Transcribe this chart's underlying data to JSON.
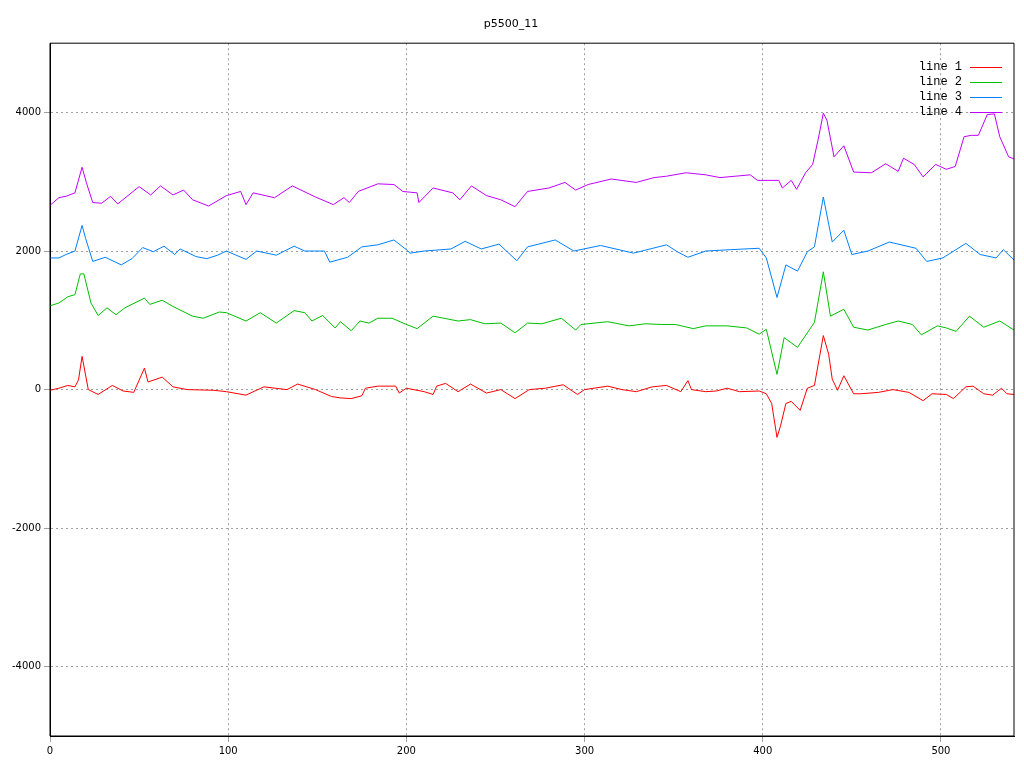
{
  "chart_data": {
    "type": "line",
    "title": "p5500_11",
    "xlim": [
      0,
      541
    ],
    "xticks": [
      0,
      100,
      200,
      300,
      400,
      500
    ],
    "ylim": [
      -5000,
      5000
    ],
    "yticks": [
      -4000,
      -2000,
      0,
      2000,
      4000
    ],
    "grid": true,
    "legend": "top right",
    "marker": "none",
    "line_style": "solid",
    "series": [
      {
        "name": "line 1",
        "color": "#ff0000",
        "x": [
          0,
          5,
          10,
          14,
          16,
          18,
          21.5,
          27,
          35,
          41,
          47,
          53,
          55,
          63,
          69,
          77,
          92,
          99,
          110,
          120,
          133,
          139,
          149,
          158,
          163,
          169,
          175,
          177,
          184,
          194,
          196,
          200,
          210,
          215,
          217,
          222,
          229,
          236,
          245,
          253,
          261,
          269,
          278,
          288,
          296,
          300,
          313,
          321,
          329,
          338,
          346,
          354,
          358,
          360,
          368,
          374,
          380,
          387,
          398,
          402,
          405,
          408,
          410,
          413,
          416,
          421,
          425,
          429,
          434,
          437,
          439,
          442,
          445.5,
          451,
          455,
          465,
          473,
          482,
          490,
          495,
          503,
          507,
          514,
          518,
          524,
          529,
          534,
          537,
          541
        ],
        "values": [
          -10,
          20,
          60,
          40,
          140,
          480,
          0,
          -70,
          60,
          -20,
          -40,
          310,
          110,
          180,
          40,
          0,
          -10,
          -30,
          -80,
          40,
          0,
          80,
          0,
          -100,
          -120,
          -130,
          -90,
          20,
          50,
          50,
          -50,
          20,
          -30,
          -70,
          50,
          90,
          -30,
          80,
          -50,
          0,
          -130,
          0,
          20,
          70,
          -70,
          0,
          50,
          0,
          -30,
          40,
          60,
          -30,
          130,
          0,
          -30,
          -20,
          20,
          -30,
          -20,
          -60,
          -200,
          -690,
          -520,
          -200,
          -170,
          -300,
          20,
          60,
          780,
          510,
          150,
          -10,
          200,
          -60,
          -60,
          -40,
          0,
          -40,
          -160,
          -60,
          -70,
          -130,
          40,
          50,
          -60,
          -80,
          20,
          -60,
          -70
        ]
      },
      {
        "name": "line 2",
        "color": "#00c000",
        "x": [
          0,
          5,
          10,
          14,
          17,
          19,
          23,
          27,
          32,
          37,
          42,
          53,
          56,
          63,
          69,
          80,
          86,
          95,
          99,
          110,
          118,
          127,
          137,
          143,
          147,
          153,
          160,
          163,
          169,
          174,
          179,
          184,
          192,
          200,
          206,
          215,
          229,
          236,
          244,
          253,
          261,
          268,
          276,
          287,
          295,
          298,
          313,
          325,
          334,
          343,
          351,
          361,
          368,
          380,
          391,
          398,
          402,
          408,
          412,
          419.5,
          429,
          434,
          438,
          445.5,
          451,
          459,
          469,
          476,
          484,
          489,
          498,
          503,
          508.5,
          516,
          524,
          533,
          541
        ],
        "values": [
          1210,
          1250,
          1340,
          1370,
          1670,
          1670,
          1250,
          1070,
          1180,
          1080,
          1180,
          1320,
          1230,
          1290,
          1200,
          1060,
          1030,
          1120,
          1110,
          990,
          1110,
          960,
          1140,
          1110,
          990,
          1070,
          890,
          980,
          850,
          990,
          960,
          1030,
          1030,
          940,
          880,
          1060,
          990,
          1010,
          950,
          960,
          820,
          960,
          950,
          1030,
          860,
          940,
          980,
          920,
          950,
          940,
          940,
          880,
          920,
          920,
          890,
          800,
          870,
          220,
          750,
          610,
          970,
          1700,
          1060,
          1160,
          900,
          860,
          940,
          990,
          940,
          790,
          920,
          890,
          840,
          1060,
          900,
          990,
          860
        ]
      },
      {
        "name": "line 3",
        "color": "#0080ff",
        "x": [
          0,
          5,
          9,
          14,
          18,
          20,
          24,
          31,
          40,
          46,
          52,
          58,
          64,
          70,
          73,
          82,
          88,
          94,
          99,
          110,
          116,
          127,
          137,
          143,
          154,
          157,
          167,
          175,
          184,
          193,
          200,
          202,
          210,
          225,
          233,
          242,
          252,
          262,
          268,
          283.5,
          294,
          309,
          327.5,
          346,
          352,
          358,
          368,
          382,
          398,
          402,
          408,
          413,
          419.5,
          425,
          429,
          434,
          439,
          445.5,
          450,
          459,
          471,
          486,
          492,
          501,
          514,
          522,
          531,
          535,
          541
        ],
        "values": [
          1900,
          1900,
          1950,
          2000,
          2370,
          2180,
          1850,
          1910,
          1800,
          1890,
          2050,
          1990,
          2070,
          1950,
          2030,
          1920,
          1890,
          1940,
          2000,
          1880,
          2000,
          1940,
          2070,
          2000,
          2000,
          1840,
          1910,
          2060,
          2090,
          2160,
          2020,
          1970,
          2000,
          2030,
          2140,
          2030,
          2100,
          1860,
          2060,
          2160,
          2000,
          2080,
          1970,
          2090,
          1990,
          1910,
          2000,
          2020,
          2040,
          1900,
          1330,
          1800,
          1710,
          1990,
          2060,
          2780,
          2130,
          2300,
          1950,
          2000,
          2130,
          2040,
          1850,
          1900,
          2110,
          1950,
          1900,
          2020,
          1870
        ]
      },
      {
        "name": "line 4",
        "color": "#c000ff",
        "x": [
          0,
          5,
          9,
          14,
          18,
          20.5,
          24,
          29,
          34,
          38,
          50,
          56.5,
          62,
          69,
          75,
          80,
          89,
          99,
          107,
          110,
          114,
          126,
          136,
          149,
          159,
          165,
          168,
          173,
          184,
          193,
          198,
          206,
          207,
          215,
          226,
          230,
          236.5,
          245,
          253,
          261,
          268,
          280,
          289,
          295,
          302,
          315,
          329,
          339,
          346,
          357,
          368,
          376,
          393,
          397,
          409,
          411,
          416,
          419,
          424,
          428,
          431,
          434,
          436,
          440,
          445.5,
          451,
          461,
          469,
          476,
          479,
          485,
          490,
          497,
          503,
          508,
          513,
          517,
          521,
          526,
          530,
          533,
          538,
          541
        ],
        "values": [
          2660,
          2770,
          2790,
          2840,
          3210,
          2980,
          2700,
          2690,
          2790,
          2680,
          2930,
          2810,
          2940,
          2810,
          2880,
          2740,
          2650,
          2800,
          2860,
          2670,
          2840,
          2770,
          2940,
          2780,
          2670,
          2770,
          2700,
          2860,
          2970,
          2960,
          2860,
          2840,
          2700,
          2910,
          2840,
          2740,
          2940,
          2800,
          2740,
          2640,
          2860,
          2910,
          2990,
          2880,
          2960,
          3040,
          2990,
          3060,
          3080,
          3130,
          3100,
          3060,
          3100,
          3020,
          3020,
          2910,
          3020,
          2890,
          3130,
          3250,
          3600,
          3990,
          3890,
          3360,
          3520,
          3140,
          3130,
          3260,
          3150,
          3340,
          3250,
          3070,
          3250,
          3180,
          3220,
          3650,
          3670,
          3670,
          3970,
          3980,
          3650,
          3360,
          3330
        ]
      }
    ]
  }
}
